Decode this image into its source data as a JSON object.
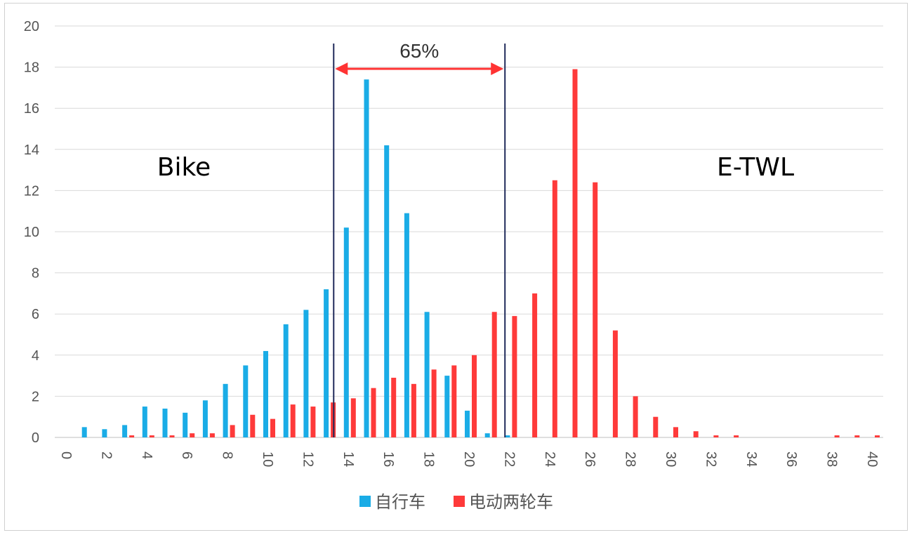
{
  "chart_data": {
    "type": "bar",
    "title": "",
    "xlabel": "",
    "ylabel": "",
    "ylim": [
      0,
      20
    ],
    "yticks": [
      0,
      2,
      4,
      6,
      8,
      10,
      12,
      14,
      16,
      18,
      20
    ],
    "xlim": [
      0,
      40
    ],
    "xticks": [
      0,
      2,
      4,
      6,
      8,
      10,
      12,
      14,
      16,
      18,
      20,
      22,
      24,
      26,
      28,
      30,
      32,
      34,
      36,
      38,
      40
    ],
    "grid": "horizontal",
    "legend_position": "bottom-center",
    "series": [
      {
        "name": "自行车",
        "color": "#1aace6",
        "x": [
          1,
          2,
          3,
          4,
          5,
          6,
          7,
          8,
          9,
          10,
          11,
          12,
          13,
          14,
          15,
          16,
          17,
          18,
          19,
          20,
          21,
          22
        ],
        "values": [
          0.5,
          0.4,
          0.6,
          1.5,
          1.4,
          1.2,
          1.8,
          2.6,
          3.5,
          4.2,
          5.5,
          6.2,
          7.2,
          10.2,
          17.4,
          14.2,
          10.9,
          6.1,
          3.0,
          1.3,
          0.2,
          0.1
        ]
      },
      {
        "name": "电动两轮车",
        "color": "#fe3a3a",
        "x": [
          3,
          4,
          5,
          6,
          7,
          8,
          9,
          10,
          11,
          12,
          13,
          14,
          15,
          16,
          17,
          18,
          19,
          20,
          21,
          22,
          23,
          24,
          25,
          26,
          27,
          28,
          29,
          30,
          31,
          32,
          33,
          38,
          39,
          40
        ],
        "values": [
          0.1,
          0.1,
          0.1,
          0.2,
          0.2,
          0.6,
          1.1,
          0.9,
          1.6,
          1.5,
          1.7,
          1.9,
          2.4,
          2.9,
          2.6,
          3.3,
          3.5,
          4.0,
          6.1,
          5.9,
          7.0,
          12.5,
          17.9,
          12.4,
          5.2,
          2.0,
          1.0,
          0.5,
          0.3,
          0.1,
          0.1,
          0.1,
          0.1,
          0.1
        ]
      }
    ],
    "annotations": {
      "left_label": "Bike",
      "right_label": "E-TWL",
      "span_label": "65%",
      "span_lines_x": [
        13.25,
        21.75
      ],
      "arrow_color": "#ff3333",
      "line_color": "#1f2a5a"
    }
  }
}
